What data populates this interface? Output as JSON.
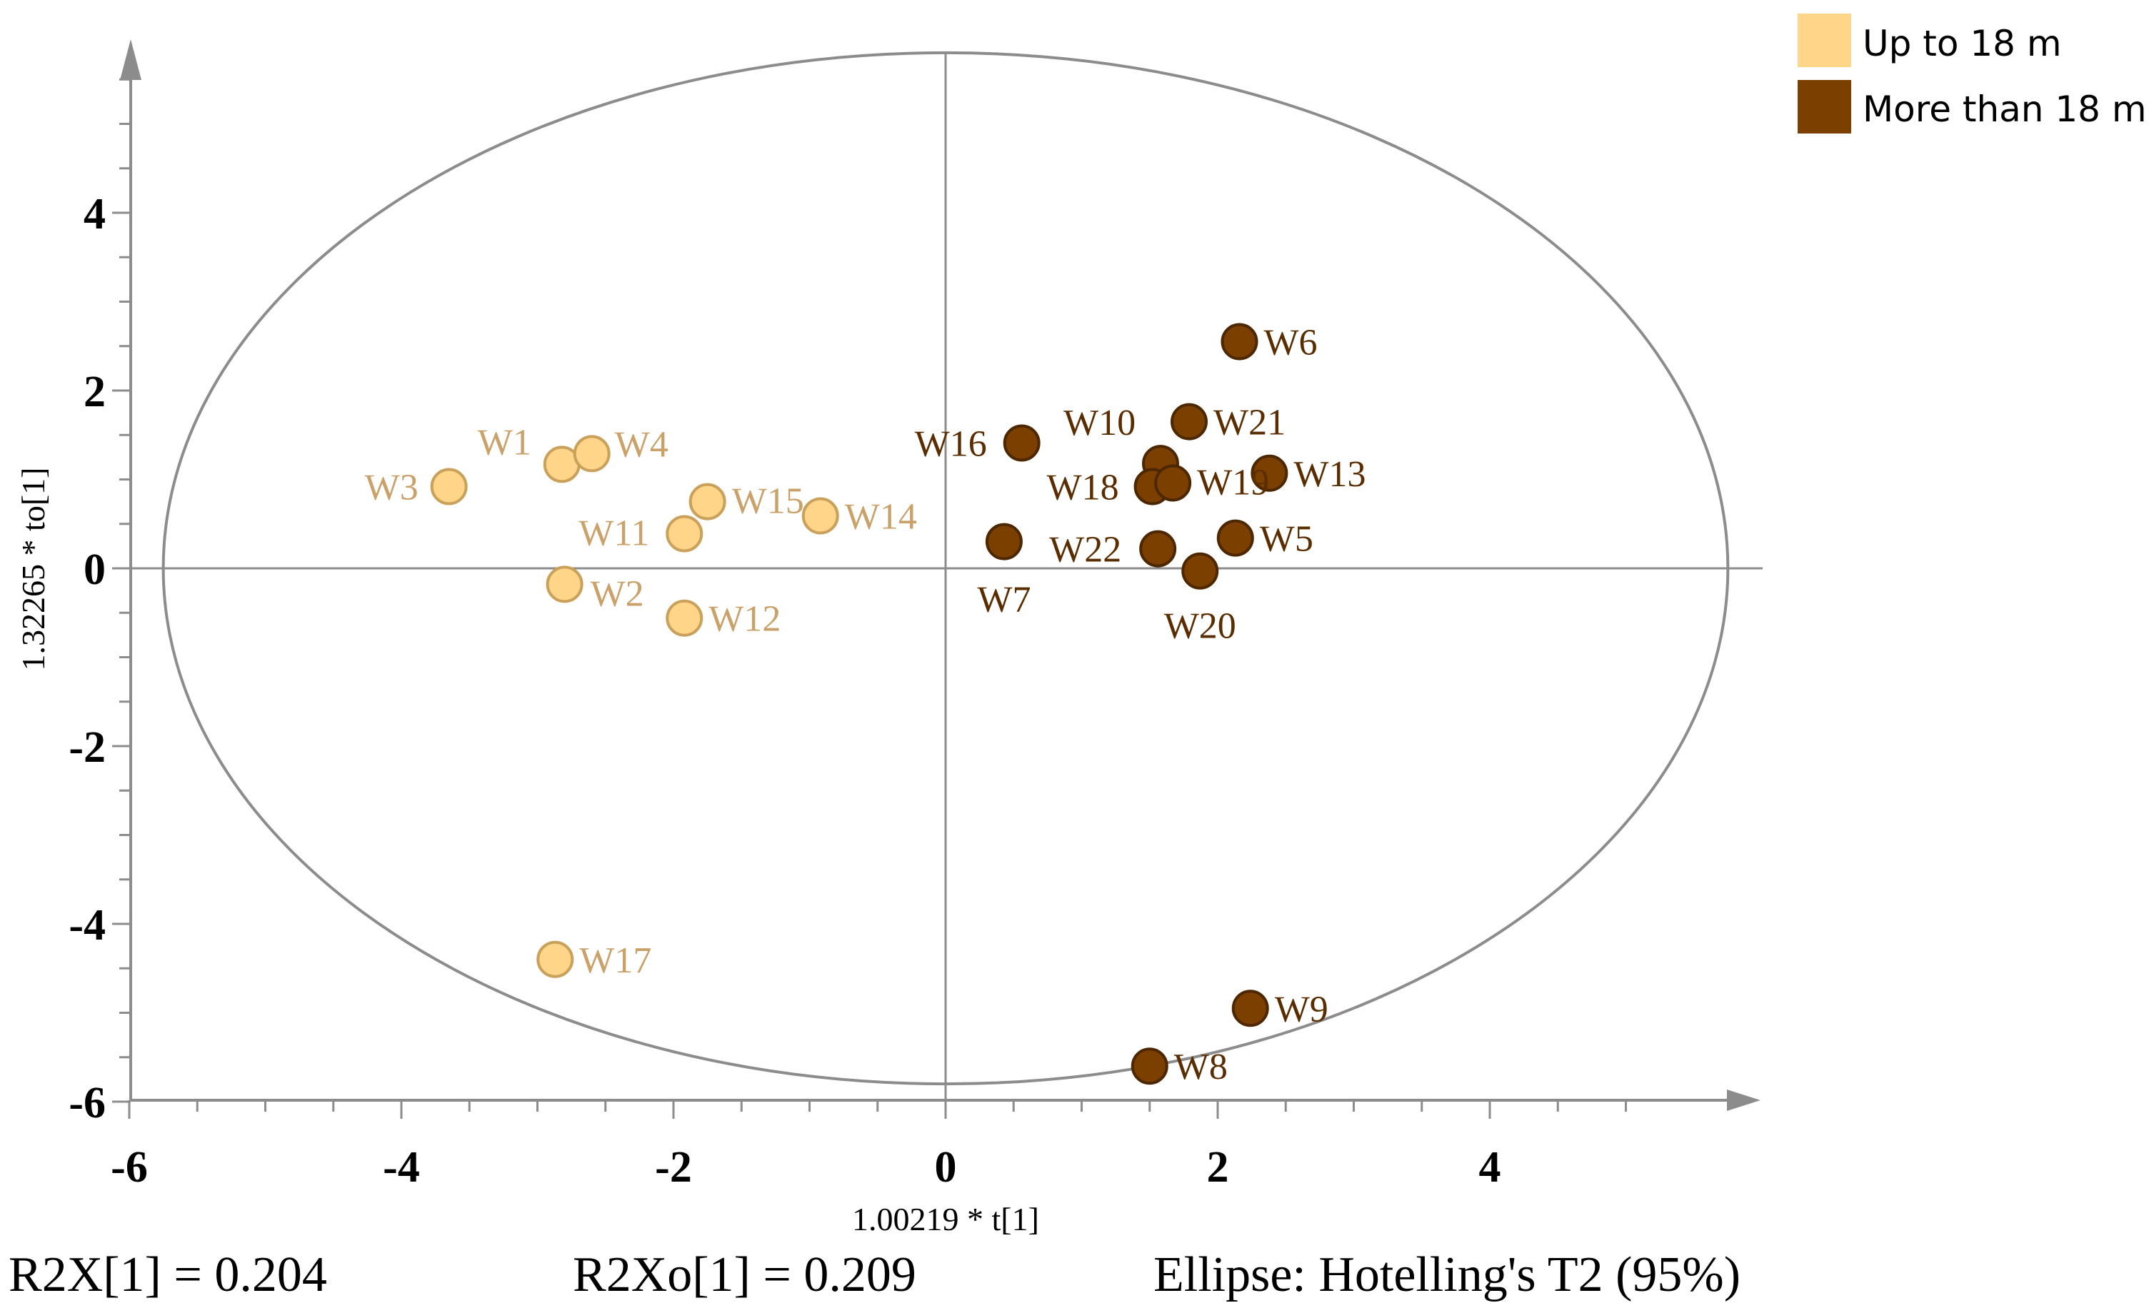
{
  "chart_data": {
    "type": "scatter",
    "xlabel": "1.00219 * t[1]",
    "ylabel": "1.32265 * to[1]",
    "xlim": [
      -6,
      6
    ],
    "ylim": [
      -6,
      5.8
    ],
    "x_ticks": [
      -6,
      -4,
      -2,
      0,
      2,
      4
    ],
    "y_ticks": [
      -6,
      -4,
      -2,
      0,
      2,
      4
    ],
    "x_tick_labels": [
      "-6",
      "-4",
      "-2",
      "0",
      "2",
      "4"
    ],
    "y_tick_labels": [
      "-6",
      "-4",
      "-2",
      "0",
      "2",
      "4"
    ],
    "grid": false,
    "legend_position": "top-right",
    "ellipse": {
      "semi_axis_x": 5.75,
      "semi_axis_y": 5.8
    },
    "series": [
      {
        "name": "Up to 18 m",
        "color": "#ffd58a",
        "stroke": "#c9a15a",
        "label_color": "#c9a169",
        "points": [
          {
            "label": "W1",
            "x": -2.82,
            "y": 1.17
          },
          {
            "label": "W2",
            "x": -2.8,
            "y": -0.18
          },
          {
            "label": "W3",
            "x": -3.65,
            "y": 0.92
          },
          {
            "label": "W4",
            "x": -2.6,
            "y": 1.29
          },
          {
            "label": "W11",
            "x": -1.92,
            "y": 0.39
          },
          {
            "label": "W12",
            "x": -1.92,
            "y": -0.56
          },
          {
            "label": "W14",
            "x": -0.92,
            "y": 0.59
          },
          {
            "label": "W15",
            "x": -1.75,
            "y": 0.75
          },
          {
            "label": "W17",
            "x": -2.87,
            "y": -4.4
          }
        ]
      },
      {
        "name": "More than 18 m",
        "color": "#7b3f00",
        "stroke": "#4d2700",
        "label_color": "#5a2d00",
        "points": [
          {
            "label": "W5",
            "x": 2.13,
            "y": 0.34
          },
          {
            "label": "W6",
            "x": 2.16,
            "y": 2.55
          },
          {
            "label": "W7",
            "x": 0.43,
            "y": 0.3
          },
          {
            "label": "W8",
            "x": 1.5,
            "y": -5.6
          },
          {
            "label": "W9",
            "x": 2.24,
            "y": -4.95
          },
          {
            "label": "W10",
            "x": 1.58,
            "y": 1.18
          },
          {
            "label": "W13",
            "x": 2.38,
            "y": 1.07
          },
          {
            "label": "W16",
            "x": 0.56,
            "y": 1.41
          },
          {
            "label": "W18",
            "x": 1.52,
            "y": 0.92
          },
          {
            "label": "W19",
            "x": 1.67,
            "y": 0.96
          },
          {
            "label": "W20",
            "x": 1.87,
            "y": -0.03
          },
          {
            "label": "W21",
            "x": 1.79,
            "y": 1.65
          },
          {
            "label": "W22",
            "x": 1.56,
            "y": 0.22
          }
        ]
      }
    ]
  },
  "footer": {
    "r2x": "R2X[1] = 0.204",
    "r2xo": "R2Xo[1] = 0.209",
    "ellipse_note": "Ellipse: Hotelling's T2 (95%)"
  }
}
